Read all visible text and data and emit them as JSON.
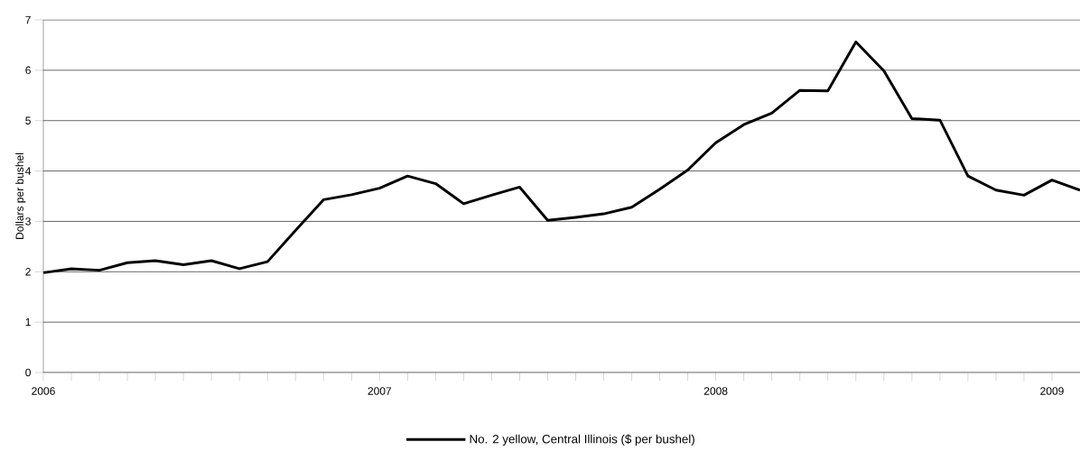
{
  "chart_data": {
    "type": "line",
    "ylabel": "Dollars per bushel",
    "xlim": [
      "2006-01",
      "2009-02"
    ],
    "ylim": [
      0,
      7
    ],
    "yticks": [
      0,
      1,
      2,
      3,
      4,
      5,
      6,
      7
    ],
    "xticks": [
      {
        "value": "2006-01",
        "label": "2006"
      },
      {
        "value": "2006-02",
        "label": null
      },
      {
        "value": "2006-03",
        "label": null
      },
      {
        "value": "2006-04",
        "label": null
      },
      {
        "value": "2006-05",
        "label": null
      },
      {
        "value": "2006-06",
        "label": null
      },
      {
        "value": "2006-07",
        "label": null
      },
      {
        "value": "2006-08",
        "label": null
      },
      {
        "value": "2006-09",
        "label": null
      },
      {
        "value": "2006-10",
        "label": null
      },
      {
        "value": "2006-11",
        "label": null
      },
      {
        "value": "2006-12",
        "label": null
      },
      {
        "value": "2007-01",
        "label": "2007"
      },
      {
        "value": "2007-02",
        "label": null
      },
      {
        "value": "2007-03",
        "label": null
      },
      {
        "value": "2007-04",
        "label": null
      },
      {
        "value": "2007-05",
        "label": null
      },
      {
        "value": "2007-06",
        "label": null
      },
      {
        "value": "2007-07",
        "label": null
      },
      {
        "value": "2007-08",
        "label": null
      },
      {
        "value": "2007-09",
        "label": null
      },
      {
        "value": "2007-10",
        "label": null
      },
      {
        "value": "2007-11",
        "label": null
      },
      {
        "value": "2007-12",
        "label": null
      },
      {
        "value": "2008-01",
        "label": "2008"
      },
      {
        "value": "2008-02",
        "label": null
      },
      {
        "value": "2008-03",
        "label": null
      },
      {
        "value": "2008-04",
        "label": null
      },
      {
        "value": "2008-05",
        "label": null
      },
      {
        "value": "2008-06",
        "label": null
      },
      {
        "value": "2008-07",
        "label": null
      },
      {
        "value": "2008-08",
        "label": null
      },
      {
        "value": "2008-09",
        "label": null
      },
      {
        "value": "2008-10",
        "label": null
      },
      {
        "value": "2008-11",
        "label": null
      },
      {
        "value": "2008-12",
        "label": null
      },
      {
        "value": "2009-01",
        "label": "2009"
      }
    ],
    "x": [
      "2006-01",
      "2006-02",
      "2006-03",
      "2006-04",
      "2006-05",
      "2006-06",
      "2006-07",
      "2006-08",
      "2006-09",
      "2006-10",
      "2006-11",
      "2006-12",
      "2007-01",
      "2007-02",
      "2007-03",
      "2007-04",
      "2007-05",
      "2007-06",
      "2007-07",
      "2007-08",
      "2007-09",
      "2007-10",
      "2007-11",
      "2007-12",
      "2008-01",
      "2008-02",
      "2008-03",
      "2008-04",
      "2008-05",
      "2008-06",
      "2008-07",
      "2008-08",
      "2008-09",
      "2008-10",
      "2008-11",
      "2008-12",
      "2009-01",
      "2009-02"
    ],
    "series": [
      {
        "name": "No. 2 yellow, Central Illinois ($ per bushel)",
        "color": "#000000",
        "values": [
          1.98,
          2.06,
          2.03,
          2.18,
          2.22,
          2.14,
          2.22,
          2.06,
          2.2,
          2.82,
          3.43,
          3.53,
          3.66,
          3.9,
          3.75,
          3.35,
          3.52,
          3.68,
          3.02,
          3.08,
          3.15,
          3.28,
          3.64,
          4.02,
          4.56,
          4.92,
          5.15,
          5.6,
          5.59,
          6.56,
          5.99,
          5.04,
          5.01,
          3.9,
          3.62,
          3.52,
          3.82,
          3.62
        ]
      }
    ],
    "grid": "y",
    "legend": "bottom",
    "marker": "none",
    "line_style": "solid"
  }
}
